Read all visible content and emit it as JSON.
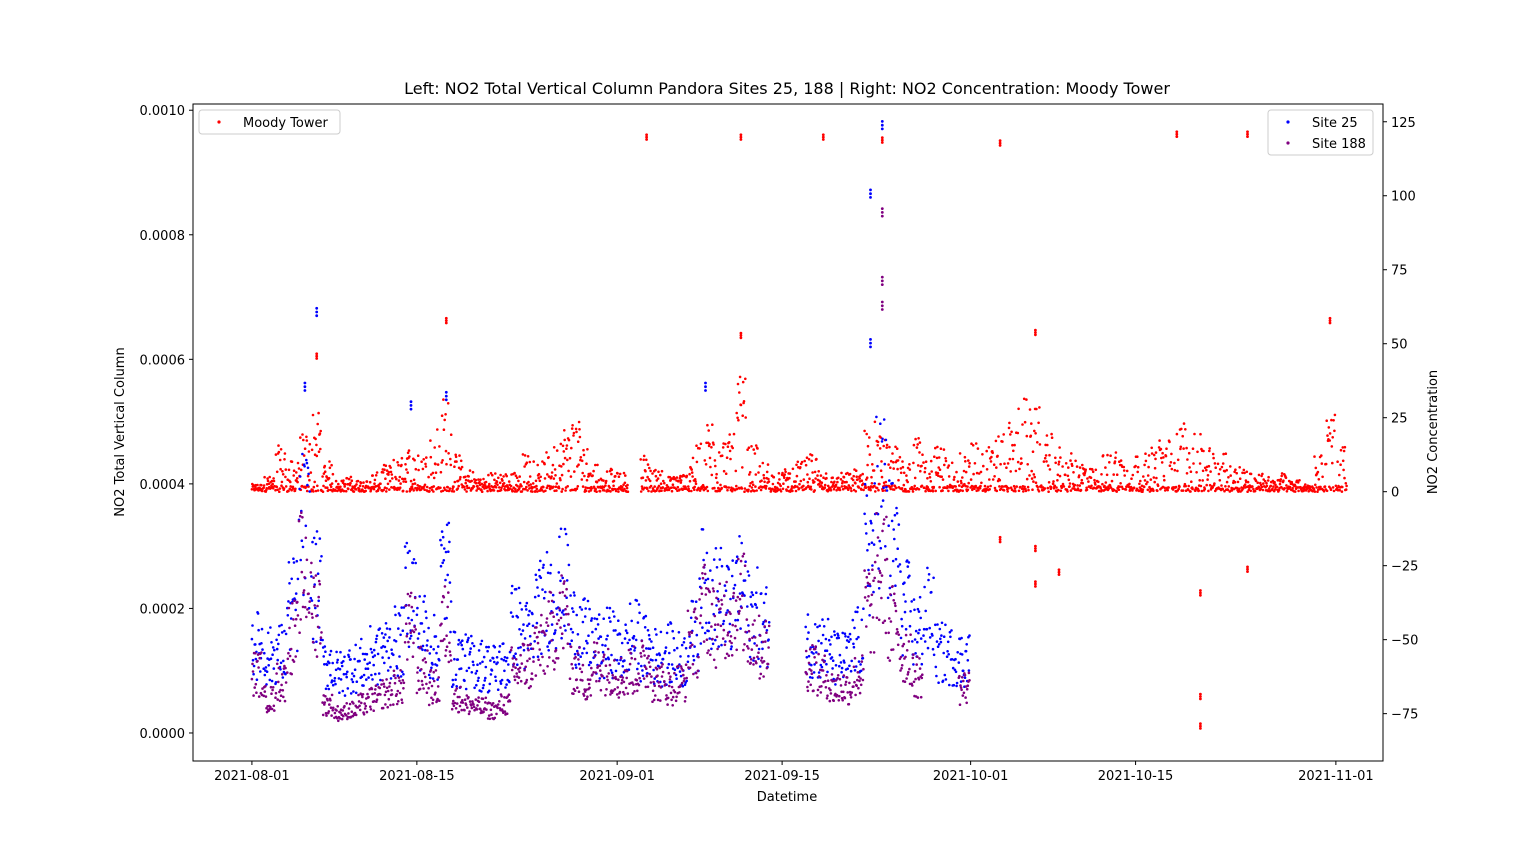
{
  "chart_data": {
    "type": "scatter",
    "title": "Left: NO2 Total Vertical Column Pandora Sites 25, 188 | Right: NO2 Concentration: Moody Tower",
    "xlabel": "Datetime",
    "ylabel_left": "NO2 Total Vertical Column",
    "ylabel_right": "NO2 Concentration",
    "x_ticks": [
      "2021-08-01",
      "2021-08-15",
      "2021-09-01",
      "2021-09-15",
      "2021-10-01",
      "2021-10-15",
      "2021-11-01"
    ],
    "xlim": [
      "2021-07-27",
      "2021-11-05"
    ],
    "ylim_left": [
      -4.5e-05,
      0.00101
    ],
    "ylim_right": [
      -91,
      131
    ],
    "y_ticks_left": [
      "0.0000",
      "0.0002",
      "0.0004",
      "0.0006",
      "0.0008",
      "0.0010"
    ],
    "y_ticks_right": [
      "−75",
      "−50",
      "−25",
      "0",
      "25",
      "50",
      "75",
      "100",
      "125"
    ],
    "legend_left": {
      "position": "upper left",
      "entries": [
        "Moody Tower"
      ]
    },
    "legend_right": {
      "position": "upper right",
      "entries": [
        "Site 25",
        "Site 188"
      ]
    },
    "series": [
      {
        "name": "Site 25",
        "axis": "left",
        "color": "#0000ff",
        "points": [
          [
            "2021-08-01",
            0.000155
          ],
          [
            "2021-08-02",
            0.000135
          ],
          [
            "2021-08-03",
            0.00014
          ],
          [
            "2021-08-04",
            0.000225
          ],
          [
            "2021-08-05",
            0.00036
          ],
          [
            "2021-08-06",
            0.000255
          ],
          [
            "2021-08-07",
            0.00012
          ],
          [
            "2021-08-08",
            0.000105
          ],
          [
            "2021-08-09",
            0.000115
          ],
          [
            "2021-08-10",
            0.00012
          ],
          [
            "2021-08-11",
            0.000135
          ],
          [
            "2021-08-12",
            0.00015
          ],
          [
            "2021-08-13",
            0.00016
          ],
          [
            "2021-08-14",
            0.00025
          ],
          [
            "2021-08-15",
            0.00018
          ],
          [
            "2021-08-16",
            0.00015
          ],
          [
            "2021-08-17",
            0.00028
          ],
          [
            "2021-08-18",
            0.00013
          ],
          [
            "2021-08-19",
            0.000125
          ],
          [
            "2021-08-20",
            0.00012
          ],
          [
            "2021-08-21",
            0.000115
          ],
          [
            "2021-08-22",
            0.00012
          ],
          [
            "2021-08-23",
            0.00019
          ],
          [
            "2021-08-24",
            0.00017
          ],
          [
            "2021-08-25",
            0.00022
          ],
          [
            "2021-08-26",
            0.00024
          ],
          [
            "2021-08-27",
            0.00026
          ],
          [
            "2021-08-28",
            0.00019
          ],
          [
            "2021-08-29",
            0.00017
          ],
          [
            "2021-08-30",
            0.00015
          ],
          [
            "2021-08-31",
            0.00016
          ],
          [
            "2021-09-01",
            0.000145
          ],
          [
            "2021-09-02",
            0.00017
          ],
          [
            "2021-09-03",
            0.00015
          ],
          [
            "2021-09-04",
            0.000135
          ],
          [
            "2021-09-05",
            0.00014
          ],
          [
            "2021-09-06",
            0.00013
          ],
          [
            "2021-09-07",
            0.00017
          ],
          [
            "2021-09-08",
            0.00026
          ],
          [
            "2021-09-09",
            0.00024
          ],
          [
            "2021-09-10",
            0.00022
          ],
          [
            "2021-09-11",
            0.00025
          ],
          [
            "2021-09-12",
            0.00021
          ],
          [
            "2021-09-13",
            0.00019
          ],
          [
            "2021-09-17",
            0.00016
          ],
          [
            "2021-09-18",
            0.00015
          ],
          [
            "2021-09-19",
            0.00013
          ],
          [
            "2021-09-20",
            0.00013
          ],
          [
            "2021-09-21",
            0.00016
          ],
          [
            "2021-09-22",
            0.00032
          ],
          [
            "2021-09-23",
            0.00042
          ],
          [
            "2021-09-24",
            0.00033
          ],
          [
            "2021-09-25",
            0.00022
          ],
          [
            "2021-09-26",
            0.00018
          ],
          [
            "2021-09-27",
            0.00021
          ],
          [
            "2021-09-28",
            0.00014
          ],
          [
            "2021-09-29",
            0.000135
          ],
          [
            "2021-09-30",
            0.00013
          ]
        ],
        "outliers": [
          [
            "2021-08-05",
            0.00055
          ],
          [
            "2021-08-06",
            0.00067
          ],
          [
            "2021-08-14",
            0.00052
          ],
          [
            "2021-08-17",
            0.000535
          ],
          [
            "2021-09-08",
            0.00055
          ],
          [
            "2021-09-22",
            0.00086
          ],
          [
            "2021-09-22",
            0.00062
          ],
          [
            "2021-09-23",
            0.00097
          ]
        ]
      },
      {
        "name": "Site 188",
        "axis": "left",
        "color": "#800080",
        "points": [
          [
            "2021-08-01",
            0.000105
          ],
          [
            "2021-08-02",
            6e-05
          ],
          [
            "2021-08-03",
            9e-05
          ],
          [
            "2021-08-04",
            0.00017
          ],
          [
            "2021-08-05",
            0.00028
          ],
          [
            "2021-08-06",
            0.00022
          ],
          [
            "2021-08-07",
            5e-05
          ],
          [
            "2021-08-08",
            3.5e-05
          ],
          [
            "2021-08-09",
            4e-05
          ],
          [
            "2021-08-10",
            5e-05
          ],
          [
            "2021-08-11",
            6e-05
          ],
          [
            "2021-08-12",
            7e-05
          ],
          [
            "2021-08-13",
            8e-05
          ],
          [
            "2021-08-14",
            0.00018
          ],
          [
            "2021-08-15",
            0.00011
          ],
          [
            "2021-08-16",
            8e-05
          ],
          [
            "2021-08-17",
            0.00019
          ],
          [
            "2021-08-18",
            6e-05
          ],
          [
            "2021-08-19",
            5e-05
          ],
          [
            "2021-08-20",
            4.5e-05
          ],
          [
            "2021-08-21",
            4e-05
          ],
          [
            "2021-08-22",
            5e-05
          ],
          [
            "2021-08-23",
            0.00011
          ],
          [
            "2021-08-24",
            0.00012
          ],
          [
            "2021-08-25",
            0.00015
          ],
          [
            "2021-08-26",
            0.00018
          ],
          [
            "2021-08-27",
            0.00021
          ],
          [
            "2021-08-28",
            0.00011
          ],
          [
            "2021-08-29",
            9e-05
          ],
          [
            "2021-08-30",
            0.00012
          ],
          [
            "2021-08-31",
            0.00011
          ],
          [
            "2021-09-01",
            0.0001
          ],
          [
            "2021-09-02",
            0.00011
          ],
          [
            "2021-09-03",
            0.00012
          ],
          [
            "2021-09-04",
            9e-05
          ],
          [
            "2021-09-05",
            8e-05
          ],
          [
            "2021-09-06",
            9e-05
          ],
          [
            "2021-09-07",
            0.00016
          ],
          [
            "2021-09-08",
            0.00022
          ],
          [
            "2021-09-09",
            0.00019
          ],
          [
            "2021-09-10",
            0.00021
          ],
          [
            "2021-09-11",
            0.00023
          ],
          [
            "2021-09-12",
            0.00017
          ],
          [
            "2021-09-13",
            0.00015
          ],
          [
            "2021-09-17",
            0.00012
          ],
          [
            "2021-09-18",
            0.0001
          ],
          [
            "2021-09-19",
            8e-05
          ],
          [
            "2021-09-20",
            8e-05
          ],
          [
            "2021-09-21",
            0.0001
          ],
          [
            "2021-09-22",
            0.00022
          ],
          [
            "2021-09-23",
            0.00028
          ],
          [
            "2021-09-24",
            0.00019
          ],
          [
            "2021-09-25",
            0.00014
          ],
          [
            "2021-09-26",
            0.0001
          ],
          [
            "2021-09-30",
            8e-05
          ]
        ],
        "outliers": [
          [
            "2021-09-23",
            0.00083
          ],
          [
            "2021-09-23",
            0.00072
          ],
          [
            "2021-09-23",
            0.00068
          ]
        ]
      },
      {
        "name": "Moody Tower",
        "axis": "right",
        "color": "#ff0000",
        "points": [
          [
            "2021-08-01",
            2
          ],
          [
            "2021-08-02",
            4
          ],
          [
            "2021-08-03",
            12
          ],
          [
            "2021-08-04",
            8
          ],
          [
            "2021-08-05",
            15
          ],
          [
            "2021-08-06",
            22
          ],
          [
            "2021-08-07",
            8
          ],
          [
            "2021-08-08",
            3
          ],
          [
            "2021-08-09",
            4
          ],
          [
            "2021-08-10",
            3
          ],
          [
            "2021-08-11",
            5
          ],
          [
            "2021-08-12",
            7
          ],
          [
            "2021-08-13",
            9
          ],
          [
            "2021-08-14",
            12
          ],
          [
            "2021-08-15",
            10
          ],
          [
            "2021-08-16",
            18
          ],
          [
            "2021-08-17",
            25
          ],
          [
            "2021-08-18",
            10
          ],
          [
            "2021-08-19",
            6
          ],
          [
            "2021-08-20",
            4
          ],
          [
            "2021-08-21",
            5
          ],
          [
            "2021-08-22",
            5
          ],
          [
            "2021-08-23",
            6
          ],
          [
            "2021-08-24",
            10
          ],
          [
            "2021-08-25",
            8
          ],
          [
            "2021-08-26",
            12
          ],
          [
            "2021-08-27",
            18
          ],
          [
            "2021-08-28",
            20
          ],
          [
            "2021-08-29",
            12
          ],
          [
            "2021-08-30",
            8
          ],
          [
            "2021-08-31",
            6
          ],
          [
            "2021-09-01",
            5
          ],
          [
            "2021-09-03",
            10
          ],
          [
            "2021-09-04",
            6
          ],
          [
            "2021-09-05",
            4
          ],
          [
            "2021-09-06",
            5
          ],
          [
            "2021-09-07",
            12
          ],
          [
            "2021-09-08",
            18
          ],
          [
            "2021-09-09",
            20
          ],
          [
            "2021-09-10",
            15
          ],
          [
            "2021-09-11",
            30
          ],
          [
            "2021-09-12",
            12
          ],
          [
            "2021-09-13",
            8
          ],
          [
            "2021-09-14",
            5
          ],
          [
            "2021-09-15",
            6
          ],
          [
            "2021-09-16",
            8
          ],
          [
            "2021-09-17",
            10
          ],
          [
            "2021-09-18",
            6
          ],
          [
            "2021-09-19",
            4
          ],
          [
            "2021-09-20",
            5
          ],
          [
            "2021-09-21",
            6
          ],
          [
            "2021-09-22",
            20
          ],
          [
            "2021-09-23",
            15
          ],
          [
            "2021-09-24",
            12
          ],
          [
            "2021-09-25",
            10
          ],
          [
            "2021-09-26",
            14
          ],
          [
            "2021-09-27",
            10
          ],
          [
            "2021-09-28",
            12
          ],
          [
            "2021-09-29",
            8
          ],
          [
            "2021-09-30",
            10
          ],
          [
            "2021-10-01",
            14
          ],
          [
            "2021-10-02",
            12
          ],
          [
            "2021-10-03",
            16
          ],
          [
            "2021-10-04",
            18
          ],
          [
            "2021-10-05",
            25
          ],
          [
            "2021-10-06",
            22
          ],
          [
            "2021-10-07",
            15
          ],
          [
            "2021-10-08",
            12
          ],
          [
            "2021-10-09",
            10
          ],
          [
            "2021-10-10",
            8
          ],
          [
            "2021-10-11",
            6
          ],
          [
            "2021-10-12",
            10
          ],
          [
            "2021-10-13",
            12
          ],
          [
            "2021-10-14",
            8
          ],
          [
            "2021-10-15",
            10
          ],
          [
            "2021-10-16",
            12
          ],
          [
            "2021-10-17",
            14
          ],
          [
            "2021-10-18",
            18
          ],
          [
            "2021-10-19",
            20
          ],
          [
            "2021-10-20",
            15
          ],
          [
            "2021-10-21",
            12
          ],
          [
            "2021-10-22",
            10
          ],
          [
            "2021-10-23",
            8
          ],
          [
            "2021-10-24",
            6
          ],
          [
            "2021-10-25",
            5
          ],
          [
            "2021-10-26",
            4
          ],
          [
            "2021-10-27",
            5
          ],
          [
            "2021-10-28",
            3
          ],
          [
            "2021-10-29",
            2
          ],
          [
            "2021-10-30",
            10
          ],
          [
            "2021-10-31",
            20
          ],
          [
            "2021-11-01",
            12
          ]
        ],
        "outliers": [
          [
            "2021-09-03",
            119
          ],
          [
            "2021-09-11",
            119
          ],
          [
            "2021-09-18",
            119
          ],
          [
            "2021-09-23",
            118
          ],
          [
            "2021-10-03",
            117
          ],
          [
            "2021-10-18",
            120
          ],
          [
            "2021-10-24",
            120
          ],
          [
            "2021-08-17",
            57
          ],
          [
            "2021-08-06",
            45
          ],
          [
            "2021-09-11",
            52
          ],
          [
            "2021-10-06",
            53
          ],
          [
            "2021-10-31",
            57
          ],
          [
            "2021-10-20",
            -35
          ],
          [
            "2021-10-20",
            -70
          ],
          [
            "2021-10-20",
            -80
          ],
          [
            "2021-10-06",
            -32
          ],
          [
            "2021-10-08",
            -28
          ],
          [
            "2021-10-24",
            -27
          ],
          [
            "2021-10-03",
            -17
          ],
          [
            "2021-10-06",
            -20
          ]
        ]
      }
    ]
  }
}
